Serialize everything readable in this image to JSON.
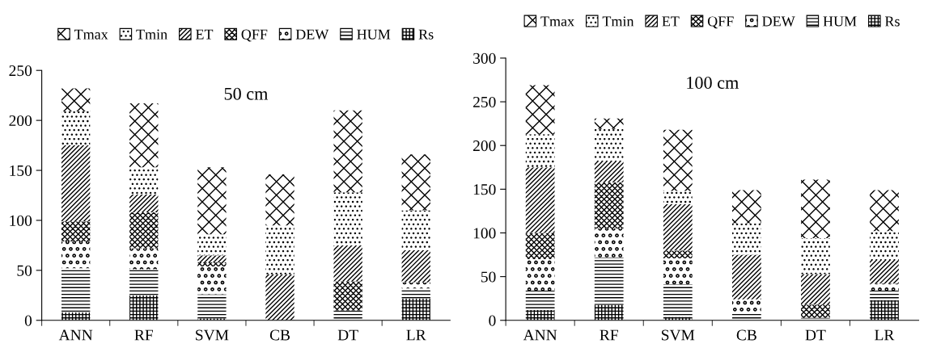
{
  "chart_data": [
    {
      "type": "bar",
      "stacked": true,
      "legend": "top",
      "grid": false,
      "annotations": [
        "50 cm"
      ],
      "categories": [
        "ANN",
        "RF",
        "SVM",
        "CB",
        "DT",
        "LR"
      ],
      "ylim": [
        0,
        250
      ],
      "yticks": [
        0,
        50,
        100,
        150,
        200,
        250
      ],
      "series": [
        {
          "name": "Rs",
          "color": "#ffffff",
          "values": [
            8,
            25,
            2,
            0,
            0,
            22
          ]
        },
        {
          "name": "HUM",
          "color": "#ffffff",
          "values": [
            44,
            26,
            24,
            0,
            10,
            10
          ]
        },
        {
          "name": "DEW",
          "color": "#ffffff",
          "values": [
            27,
            21,
            28,
            0,
            0,
            6
          ]
        },
        {
          "name": "QFF",
          "color": "#ffffff",
          "values": [
            20,
            36,
            4,
            0,
            29,
            0
          ]
        },
        {
          "name": "ET",
          "color": "#ffffff",
          "values": [
            76,
            18,
            7,
            46,
            36,
            32
          ]
        },
        {
          "name": "Tmin",
          "color": "#ffffff",
          "values": [
            34,
            27,
            21,
            49,
            53,
            40
          ]
        },
        {
          "name": "Tmax",
          "color": "#ffffff",
          "values": [
            23,
            64,
            67,
            51,
            82,
            56
          ]
        }
      ]
    },
    {
      "type": "bar",
      "stacked": true,
      "legend": "top",
      "grid": false,
      "annotations": [
        "100 cm"
      ],
      "categories": [
        "ANN",
        "RF",
        "SVM",
        "CB",
        "DT",
        "LR"
      ],
      "ylim": [
        0,
        300
      ],
      "yticks": [
        0,
        50,
        100,
        150,
        200,
        250,
        300
      ],
      "series": [
        {
          "name": "Rs",
          "color": "#ffffff",
          "values": [
            12,
            18,
            4,
            0,
            0,
            23
          ]
        },
        {
          "name": "HUM",
          "color": "#ffffff",
          "values": [
            22,
            54,
            37,
            10,
            3,
            11
          ]
        },
        {
          "name": "DEW",
          "color": "#ffffff",
          "values": [
            36,
            33,
            30,
            14,
            0,
            8
          ]
        },
        {
          "name": "QFF",
          "color": "#ffffff",
          "values": [
            30,
            53,
            9,
            0,
            15,
            0
          ]
        },
        {
          "name": "ET",
          "color": "#ffffff",
          "values": [
            75,
            24,
            53,
            51,
            35,
            27
          ]
        },
        {
          "name": "Tmin",
          "color": "#ffffff",
          "values": [
            38,
            37,
            15,
            36,
            41,
            33
          ]
        },
        {
          "name": "Tmax",
          "color": "#ffffff",
          "values": [
            56,
            12,
            70,
            38,
            67,
            47
          ]
        }
      ]
    }
  ]
}
